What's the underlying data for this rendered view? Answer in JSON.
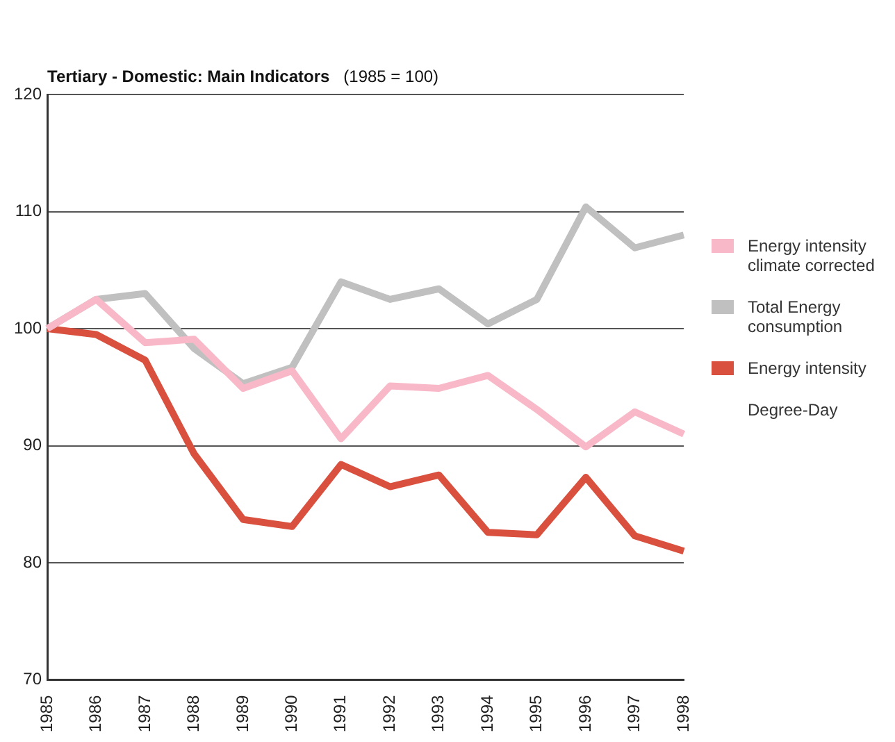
{
  "chart_data": {
    "type": "line",
    "title": "Tertiary - Domestic: Main Indicators",
    "subtitle": "(1985 = 100)",
    "categories": [
      "1985",
      "1986",
      "1987",
      "1988",
      "1989",
      "1990",
      "1991",
      "1992",
      "1993",
      "1994",
      "1995",
      "1996",
      "1997",
      "1998"
    ],
    "series": [
      {
        "name": "Energy intensity climate corrected",
        "color": "#f9b8c8",
        "values": [
          100,
          102.5,
          98.8,
          99.1,
          94.9,
          96.4,
          90.6,
          95.1,
          94.9,
          96,
          93.1,
          89.9,
          92.9,
          91
        ]
      },
      {
        "name": "Total Energy consumption",
        "color": "#c0c0c0",
        "values": [
          100,
          102.5,
          103,
          98.3,
          95.3,
          96.7,
          104,
          102.5,
          103.4,
          100.4,
          102.5,
          110.4,
          106.9,
          108
        ]
      },
      {
        "name": "Energy intensity",
        "color": "#d9503f",
        "values": [
          100,
          99.5,
          97.3,
          89.3,
          83.7,
          83.1,
          88.4,
          86.5,
          87.5,
          82.6,
          82.4,
          87.3,
          82.3,
          81
        ]
      }
    ],
    "annotations": [
      "Degree-Day"
    ],
    "ylim": [
      70,
      120
    ],
    "yticks": [
      70,
      80,
      90,
      100,
      110,
      120
    ],
    "grid": "y",
    "legend": "right",
    "marker": "none",
    "line_style": "solid"
  }
}
